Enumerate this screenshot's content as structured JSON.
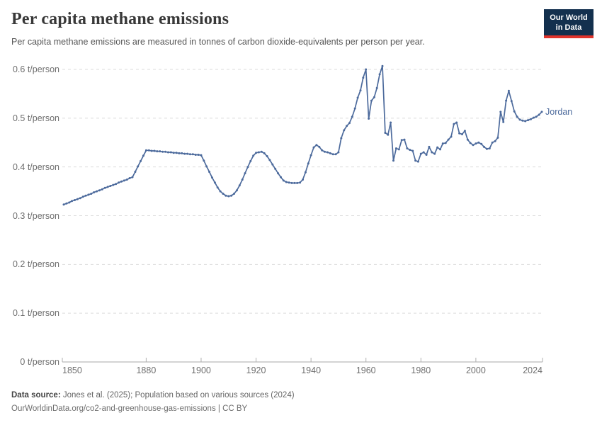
{
  "header": {
    "title": "Per capita methane emissions",
    "subtitle": "Per capita methane emissions are measured in tonnes of carbon dioxide-equivalents per person per year."
  },
  "logo": {
    "line1": "Our World",
    "line2": "in Data"
  },
  "footer": {
    "datasource_label": "Data source:",
    "datasource_text": " Jones et al. (2025); Population based on various sources (2024)",
    "credit": "OurWorldinData.org/co2-and-greenhouse-gas-emissions | CC BY"
  },
  "theme": {
    "line_color": "#4C6A9C",
    "grid_color": "#DBDBDB",
    "axis_color": "#A8A8A8",
    "tick_color": "#AFAFAF",
    "label_color": "#6F6F6F",
    "logo_bg": "#13304E",
    "logo_red": "#E0342C"
  },
  "chart_data": {
    "type": "line",
    "title": "Per capita methane emissions",
    "subtitle": "Per capita methane emissions are measured in tonnes of carbon dioxide-equivalents per person per year.",
    "unit": "t/person",
    "grid": "dashed-horizontal",
    "legend": "end-of-line-label",
    "x_axis": {
      "range": [
        1850,
        2024
      ],
      "ticks": [
        1850,
        1880,
        1900,
        1920,
        1940,
        1960,
        1980,
        2000,
        2024
      ]
    },
    "y_axis": {
      "range": [
        0,
        0.6
      ],
      "ticks": [
        {
          "value": 0,
          "label": "0 t/person"
        },
        {
          "value": 0.1,
          "label": "0.1 t/person"
        },
        {
          "value": 0.2,
          "label": "0.2 t/person"
        },
        {
          "value": 0.3,
          "label": "0.3 t/person"
        },
        {
          "value": 0.4,
          "label": "0.4 t/person"
        },
        {
          "value": 0.5,
          "label": "0.5 t/person"
        },
        {
          "value": 0.6,
          "label": "0.6 t/person"
        }
      ]
    },
    "series": [
      {
        "name": "Jordan",
        "color": "#4C6A9C",
        "years": [
          1850,
          1851,
          1852,
          1853,
          1854,
          1855,
          1856,
          1857,
          1858,
          1859,
          1860,
          1861,
          1862,
          1863,
          1864,
          1865,
          1866,
          1867,
          1868,
          1869,
          1870,
          1871,
          1872,
          1873,
          1874,
          1875,
          1876,
          1877,
          1878,
          1879,
          1880,
          1881,
          1882,
          1883,
          1884,
          1885,
          1886,
          1887,
          1888,
          1889,
          1890,
          1891,
          1892,
          1893,
          1894,
          1895,
          1896,
          1897,
          1898,
          1899,
          1900,
          1901,
          1902,
          1903,
          1904,
          1905,
          1906,
          1907,
          1908,
          1909,
          1910,
          1911,
          1912,
          1913,
          1914,
          1915,
          1916,
          1917,
          1918,
          1919,
          1920,
          1921,
          1922,
          1923,
          1924,
          1925,
          1926,
          1927,
          1928,
          1929,
          1930,
          1931,
          1932,
          1933,
          1934,
          1935,
          1936,
          1937,
          1938,
          1939,
          1940,
          1941,
          1942,
          1943,
          1944,
          1945,
          1946,
          1947,
          1948,
          1949,
          1950,
          1951,
          1952,
          1953,
          1954,
          1955,
          1956,
          1957,
          1958,
          1959,
          1960,
          1961,
          1962,
          1963,
          1964,
          1965,
          1966,
          1967,
          1968,
          1969,
          1970,
          1971,
          1972,
          1973,
          1974,
          1975,
          1976,
          1977,
          1978,
          1979,
          1980,
          1981,
          1982,
          1983,
          1984,
          1985,
          1986,
          1987,
          1988,
          1989,
          1990,
          1991,
          1992,
          1993,
          1994,
          1995,
          1996,
          1997,
          1998,
          1999,
          2000,
          2001,
          2002,
          2003,
          2004,
          2005,
          2006,
          2007,
          2008,
          2009,
          2010,
          2011,
          2012,
          2013,
          2014,
          2015,
          2016,
          2017,
          2018,
          2019,
          2020,
          2021,
          2022,
          2023,
          2024
        ],
        "values": [
          0.323,
          0.325,
          0.327,
          0.33,
          0.332,
          0.334,
          0.336,
          0.339,
          0.341,
          0.343,
          0.345,
          0.348,
          0.35,
          0.352,
          0.354,
          0.357,
          0.359,
          0.361,
          0.363,
          0.365,
          0.368,
          0.37,
          0.372,
          0.374,
          0.377,
          0.379,
          0.39,
          0.401,
          0.412,
          0.423,
          0.434,
          0.434,
          0.433,
          0.433,
          0.432,
          0.432,
          0.431,
          0.431,
          0.43,
          0.43,
          0.429,
          0.429,
          0.428,
          0.428,
          0.427,
          0.427,
          0.426,
          0.426,
          0.425,
          0.425,
          0.424,
          0.413,
          0.401,
          0.39,
          0.378,
          0.368,
          0.358,
          0.35,
          0.345,
          0.341,
          0.34,
          0.341,
          0.345,
          0.352,
          0.362,
          0.374,
          0.387,
          0.4,
          0.412,
          0.423,
          0.429,
          0.43,
          0.431,
          0.428,
          0.422,
          0.414,
          0.405,
          0.396,
          0.387,
          0.379,
          0.372,
          0.369,
          0.368,
          0.367,
          0.367,
          0.367,
          0.368,
          0.374,
          0.389,
          0.407,
          0.424,
          0.44,
          0.445,
          0.441,
          0.434,
          0.431,
          0.43,
          0.428,
          0.426,
          0.426,
          0.43,
          0.459,
          0.475,
          0.484,
          0.49,
          0.503,
          0.52,
          0.542,
          0.557,
          0.583,
          0.6,
          0.499,
          0.536,
          0.543,
          0.562,
          0.59,
          0.607,
          0.47,
          0.466,
          0.491,
          0.413,
          0.438,
          0.436,
          0.455,
          0.456,
          0.438,
          0.435,
          0.433,
          0.413,
          0.411,
          0.427,
          0.43,
          0.425,
          0.441,
          0.43,
          0.427,
          0.44,
          0.436,
          0.448,
          0.449,
          0.456,
          0.462,
          0.488,
          0.491,
          0.469,
          0.467,
          0.474,
          0.456,
          0.449,
          0.445,
          0.448,
          0.45,
          0.447,
          0.441,
          0.437,
          0.438,
          0.45,
          0.453,
          0.46,
          0.513,
          0.492,
          0.536,
          0.556,
          0.535,
          0.514,
          0.503,
          0.497,
          0.495,
          0.494,
          0.496,
          0.498,
          0.501,
          0.503,
          0.507,
          0.513
        ]
      }
    ]
  }
}
